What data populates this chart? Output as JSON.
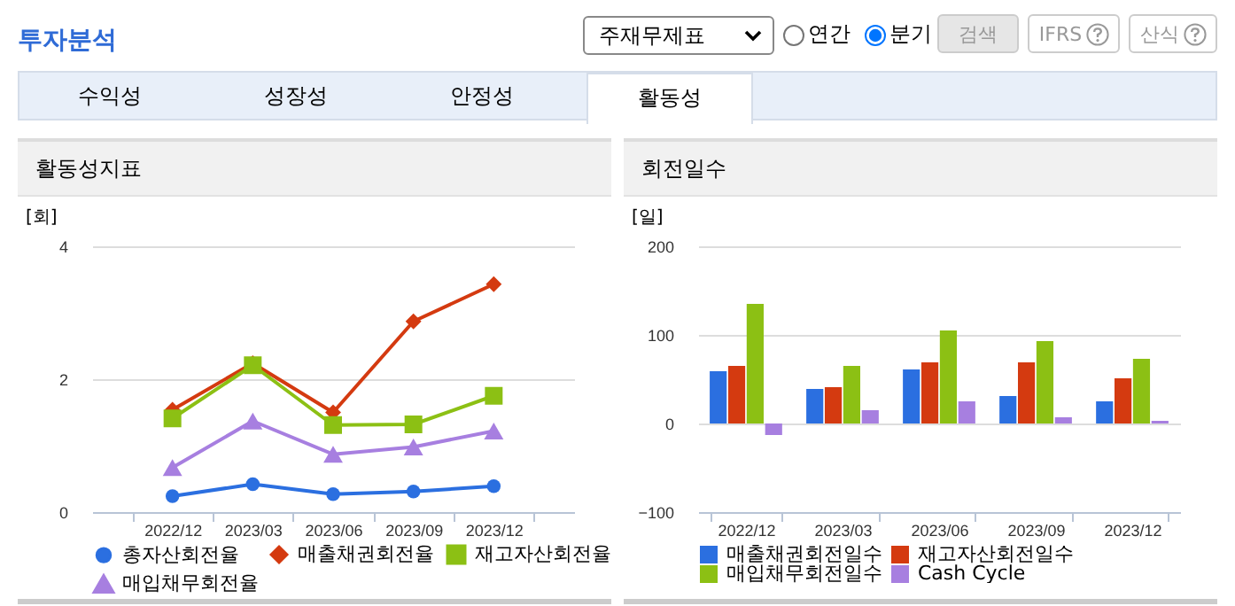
{
  "chart_data": [
    {
      "type": "other",
      "title": "투자분석",
      "annotations": [
        "주재무제표",
        "연간",
        "분기",
        "검색",
        "IFRS",
        "산식",
        "수익성",
        "성장성",
        "안정성",
        "활동성"
      ]
    },
    {
      "type": "line",
      "title": "활동성지표",
      "ylabel": "[회]",
      "categories": [
        "2022/12",
        "2023/03",
        "2023/06",
        "2023/09",
        "2023/12"
      ],
      "ylim": [
        0,
        4
      ],
      "yticks": [
        0,
        2,
        4
      ],
      "grid": "y",
      "legend": "bottom",
      "series": [
        {
          "name": "총자산회전율",
          "color": "#2b6fe0",
          "marker": "circle",
          "values": [
            0.24,
            0.42,
            0.27,
            0.31,
            0.39
          ]
        },
        {
          "name": "매출채권회전율",
          "color": "#d43a10",
          "marker": "diamond",
          "values": [
            1.54,
            2.24,
            1.5,
            2.87,
            3.43
          ]
        },
        {
          "name": "재고자산회전율",
          "color": "#8cc014",
          "marker": "square",
          "values": [
            1.41,
            2.21,
            1.31,
            1.32,
            1.75
          ]
        },
        {
          "name": "매입채무회전율",
          "color": "#a77fe0",
          "marker": "triangle",
          "values": [
            0.67,
            1.37,
            0.87,
            0.98,
            1.22
          ]
        }
      ]
    },
    {
      "type": "bar",
      "title": "회전일수",
      "ylabel": "[일]",
      "categories": [
        "2022/12",
        "2023/03",
        "2023/06",
        "2023/09",
        "2023/12"
      ],
      "ylim": [
        -100,
        200
      ],
      "yticks": [
        -100,
        0,
        100,
        200
      ],
      "grid": "y",
      "legend": "bottom",
      "series": [
        {
          "name": "매출채권회전일수",
          "color": "#2b6fe0",
          "values": [
            59,
            39,
            61,
            31,
            25
          ]
        },
        {
          "name": "재고자산회전일수",
          "color": "#d43a10",
          "values": [
            65,
            41,
            69,
            69,
            51
          ]
        },
        {
          "name": "매입채무회전일수",
          "color": "#8cc014",
          "values": [
            135,
            65,
            105,
            93,
            73
          ]
        },
        {
          "name": "Cash Cycle",
          "color": "#a77fe0",
          "values": [
            -13,
            15,
            25,
            7,
            3
          ]
        }
      ]
    }
  ]
}
